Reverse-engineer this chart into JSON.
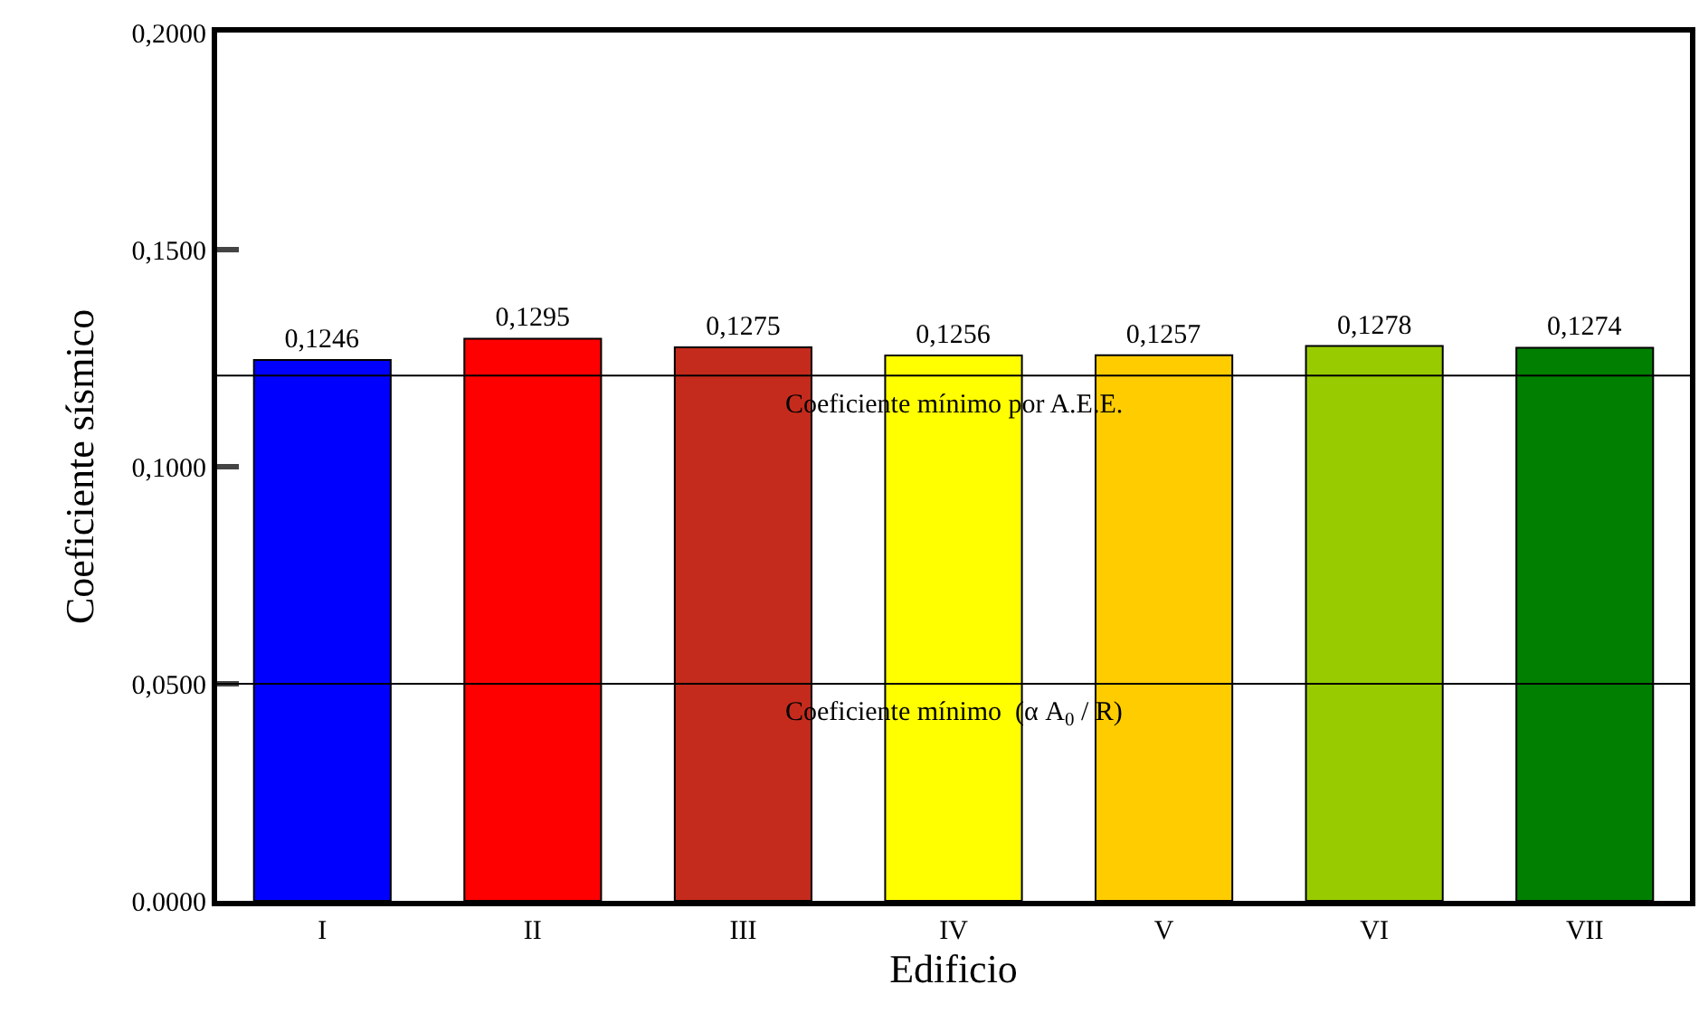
{
  "chart_data": {
    "type": "bar",
    "xlabel": "Edificio",
    "ylabel": "Coeficiente sísmico",
    "categories": [
      "I",
      "II",
      "III",
      "IV",
      "V",
      "VI",
      "VII"
    ],
    "values": [
      0.1246,
      0.1295,
      0.1275,
      0.1256,
      0.1257,
      0.1278,
      0.1274
    ],
    "colors": [
      "#0000ff",
      "#ff0000",
      "#c42b1c",
      "#ffff00",
      "#ffcc00",
      "#99cc00",
      "#007f00"
    ],
    "value_labels": [
      "0,1246",
      "0,1295",
      "0,1275",
      "0,1256",
      "0,1257",
      "0,1278",
      "0,1274"
    ],
    "ylim": [
      0,
      0.2
    ],
    "yticks": [
      {
        "value": 0,
        "label": "0.0000"
      },
      {
        "value": 0.05,
        "label": "0,0500"
      },
      {
        "value": 0.1,
        "label": "0,1000"
      },
      {
        "value": 0.15,
        "label": "0,1500"
      },
      {
        "value": 0.2,
        "label": "0,2000"
      }
    ],
    "ref_lines": [
      {
        "axis": "y",
        "value": 0.121,
        "label": "Coeficiente mínimo por A.E.E.",
        "color": "#000000"
      },
      {
        "axis": "y",
        "value": 0.05,
        "label": "Coeficiente mínimo  (α A$_{0}$ / R)",
        "color": "#000000"
      }
    ]
  }
}
